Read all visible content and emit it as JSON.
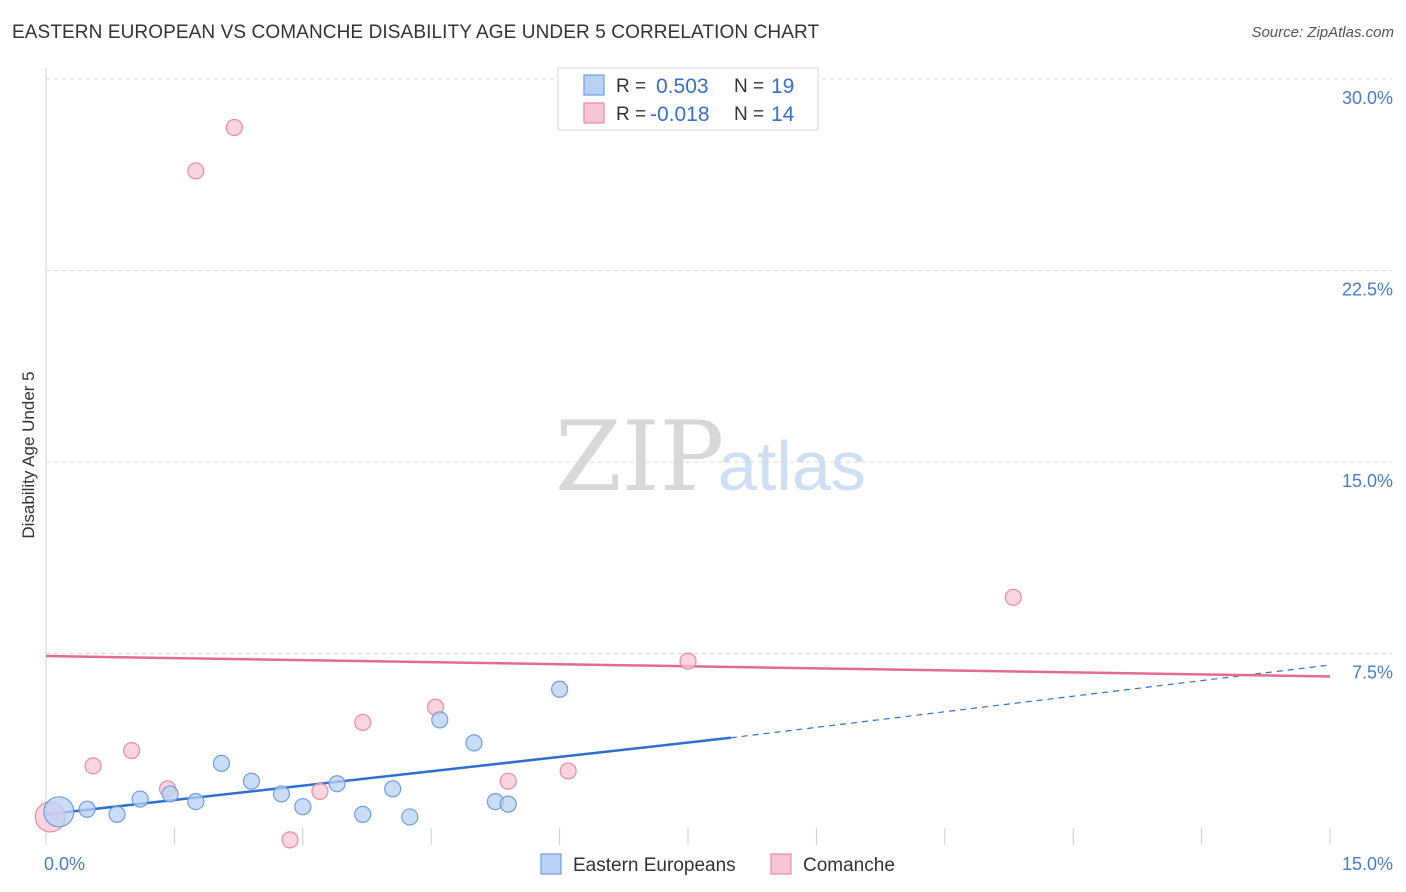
{
  "title": "EASTERN EUROPEAN VS COMANCHE DISABILITY AGE UNDER 5 CORRELATION CHART",
  "source": "Source: ZipAtlas.com",
  "watermark": {
    "zip": "ZIP",
    "atlas": "atlas"
  },
  "colors": {
    "blue_fill": "#b9d2f3",
    "blue_stroke": "#6f9be0",
    "blue_line": "#2e6fd0",
    "pink_fill": "#f8c6d3",
    "pink_stroke": "#e98aa5",
    "pink_line": "#e56a92",
    "grid": "#d9d9d9",
    "axis_text": "#4a7cc4"
  },
  "legend": {
    "rows": [
      {
        "r_label": "R =",
        "r_value": "0.503",
        "n_label": "N =",
        "n_value": "19"
      },
      {
        "r_label": "R =",
        "r_value": "-0.018",
        "n_label": "N =",
        "n_value": "14"
      }
    ]
  },
  "bottom_legend": [
    "Eastern Europeans",
    "Comanche"
  ],
  "chart_data": {
    "type": "scatter",
    "title": "EASTERN EUROPEAN VS COMANCHE DISABILITY AGE UNDER 5 CORRELATION CHART",
    "xlabel": "",
    "ylabel": "Disability Age Under 5",
    "xlim": [
      0,
      15
    ],
    "ylim": [
      0,
      30
    ],
    "x_tick_labels": [
      "0.0%",
      "15.0%"
    ],
    "y_ticks": [
      7.5,
      15,
      22.5,
      30
    ],
    "y_tick_labels": [
      "7.5%",
      "15.0%",
      "22.5%",
      "30.0%"
    ],
    "series": [
      {
        "name": "Eastern Europeans",
        "points": [
          {
            "x": 0.15,
            "y": 1.3,
            "big": true
          },
          {
            "x": 0.48,
            "y": 1.4
          },
          {
            "x": 0.83,
            "y": 1.2
          },
          {
            "x": 1.1,
            "y": 1.8
          },
          {
            "x": 1.45,
            "y": 2.0
          },
          {
            "x": 1.75,
            "y": 1.7
          },
          {
            "x": 2.05,
            "y": 3.2
          },
          {
            "x": 2.4,
            "y": 2.5
          },
          {
            "x": 2.75,
            "y": 2.0
          },
          {
            "x": 3.0,
            "y": 1.5
          },
          {
            "x": 3.4,
            "y": 2.4
          },
          {
            "x": 3.7,
            "y": 1.2
          },
          {
            "x": 4.05,
            "y": 2.2
          },
          {
            "x": 4.25,
            "y": 1.1
          },
          {
            "x": 4.6,
            "y": 4.9
          },
          {
            "x": 5.0,
            "y": 4.0
          },
          {
            "x": 5.25,
            "y": 1.7
          },
          {
            "x": 5.4,
            "y": 1.6
          },
          {
            "x": 6.0,
            "y": 6.1
          }
        ],
        "trend": {
          "x0": 0.0,
          "y0": 1.2,
          "x1": 8.0,
          "y1": 4.2,
          "dash_to_x": 15.0,
          "dash_to_y": 7.05
        }
      },
      {
        "name": "Comanche",
        "points": [
          {
            "x": 0.05,
            "y": 1.1,
            "big": true
          },
          {
            "x": 0.55,
            "y": 3.1
          },
          {
            "x": 1.0,
            "y": 3.7
          },
          {
            "x": 1.42,
            "y": 2.2
          },
          {
            "x": 1.75,
            "y": 26.4
          },
          {
            "x": 2.2,
            "y": 28.1
          },
          {
            "x": 2.85,
            "y": 0.2
          },
          {
            "x": 3.2,
            "y": 2.1
          },
          {
            "x": 3.7,
            "y": 4.8
          },
          {
            "x": 4.55,
            "y": 5.4
          },
          {
            "x": 5.4,
            "y": 2.5
          },
          {
            "x": 6.1,
            "y": 2.9
          },
          {
            "x": 7.5,
            "y": 7.2
          },
          {
            "x": 11.3,
            "y": 9.7
          }
        ],
        "trend": {
          "x0": 0.0,
          "y0": 7.4,
          "x1": 15.0,
          "y1": 6.6
        }
      }
    ]
  }
}
